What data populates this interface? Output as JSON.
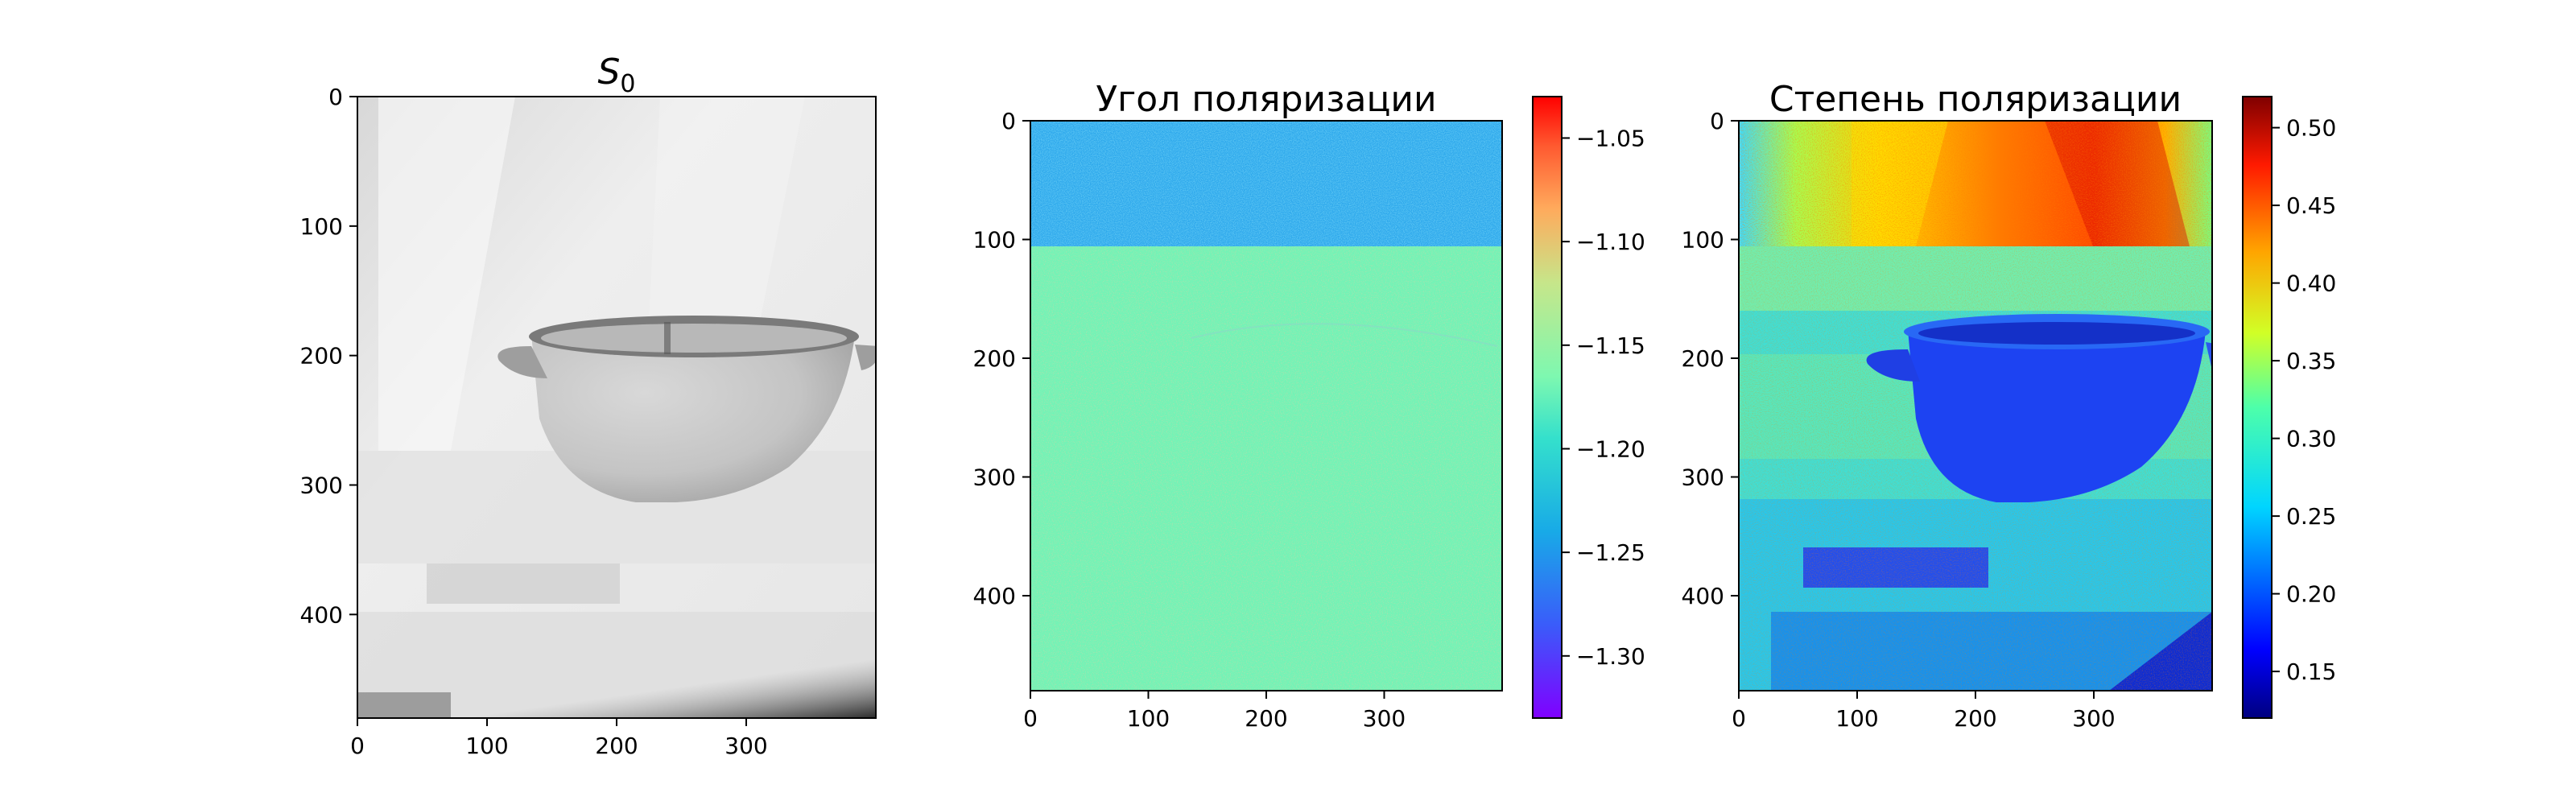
{
  "chart_data": [
    {
      "type": "heatmap",
      "title_main": "S",
      "title_sub": "0",
      "colormap": "gray",
      "xlim": [
        0,
        400
      ],
      "ylim": [
        0,
        480
      ],
      "x_ticks": [
        0,
        100,
        200,
        300
      ],
      "y_ticks": [
        0,
        100,
        200,
        300,
        400
      ],
      "x_tick_labels": [
        "0",
        "100",
        "200",
        "300"
      ],
      "y_tick_labels": [
        "0",
        "100",
        "200",
        "300",
        "400"
      ],
      "image_description_values": {
        "background_intensity": "high (light gray)",
        "bowl_rows": [
          195,
          315
        ],
        "bowl_cols": [
          110,
          400
        ]
      }
    },
    {
      "type": "heatmap",
      "title": "Угол поляризации",
      "colormap": "rainbow",
      "xlim": [
        0,
        400
      ],
      "ylim": [
        0,
        480
      ],
      "x_ticks": [
        0,
        100,
        200,
        300
      ],
      "y_ticks": [
        0,
        100,
        200,
        300,
        400
      ],
      "x_tick_labels": [
        "0",
        "100",
        "200",
        "300"
      ],
      "y_tick_labels": [
        "0",
        "100",
        "200",
        "300",
        "400"
      ],
      "colorbar": {
        "min": -1.33,
        "max": -1.03,
        "ticks": [
          -1.05,
          -1.1,
          -1.15,
          -1.2,
          -1.25,
          -1.3
        ],
        "tick_labels": [
          "−1.05",
          "−1.10",
          "−1.15",
          "−1.20",
          "−1.25",
          "−1.30"
        ]
      },
      "regions": [
        {
          "rows": [
            0,
            105
          ],
          "typical_value": -1.24
        },
        {
          "rows": [
            105,
            480
          ],
          "typical_value": -1.17
        }
      ]
    },
    {
      "type": "heatmap",
      "title": "Степень поляризации",
      "colormap": "jet",
      "xlim": [
        0,
        400
      ],
      "ylim": [
        0,
        480
      ],
      "x_ticks": [
        0,
        100,
        200,
        300
      ],
      "y_ticks": [
        0,
        100,
        200,
        300,
        400
      ],
      "x_tick_labels": [
        "0",
        "100",
        "200",
        "300"
      ],
      "y_tick_labels": [
        "0",
        "100",
        "200",
        "300",
        "400"
      ],
      "colorbar": {
        "min": 0.12,
        "max": 0.52,
        "ticks": [
          0.15,
          0.2,
          0.25,
          0.3,
          0.35,
          0.4,
          0.45,
          0.5
        ],
        "tick_labels": [
          "0.15",
          "0.20",
          "0.25",
          "0.30",
          "0.35",
          "0.40",
          "0.45",
          "0.50"
        ]
      },
      "regions": [
        {
          "rows": [
            0,
            105
          ],
          "typical_value": 0.42
        },
        {
          "rows": [
            105,
            480
          ],
          "typical_value": 0.3
        },
        {
          "name": "bowl",
          "typical_value": 0.18
        }
      ]
    }
  ]
}
